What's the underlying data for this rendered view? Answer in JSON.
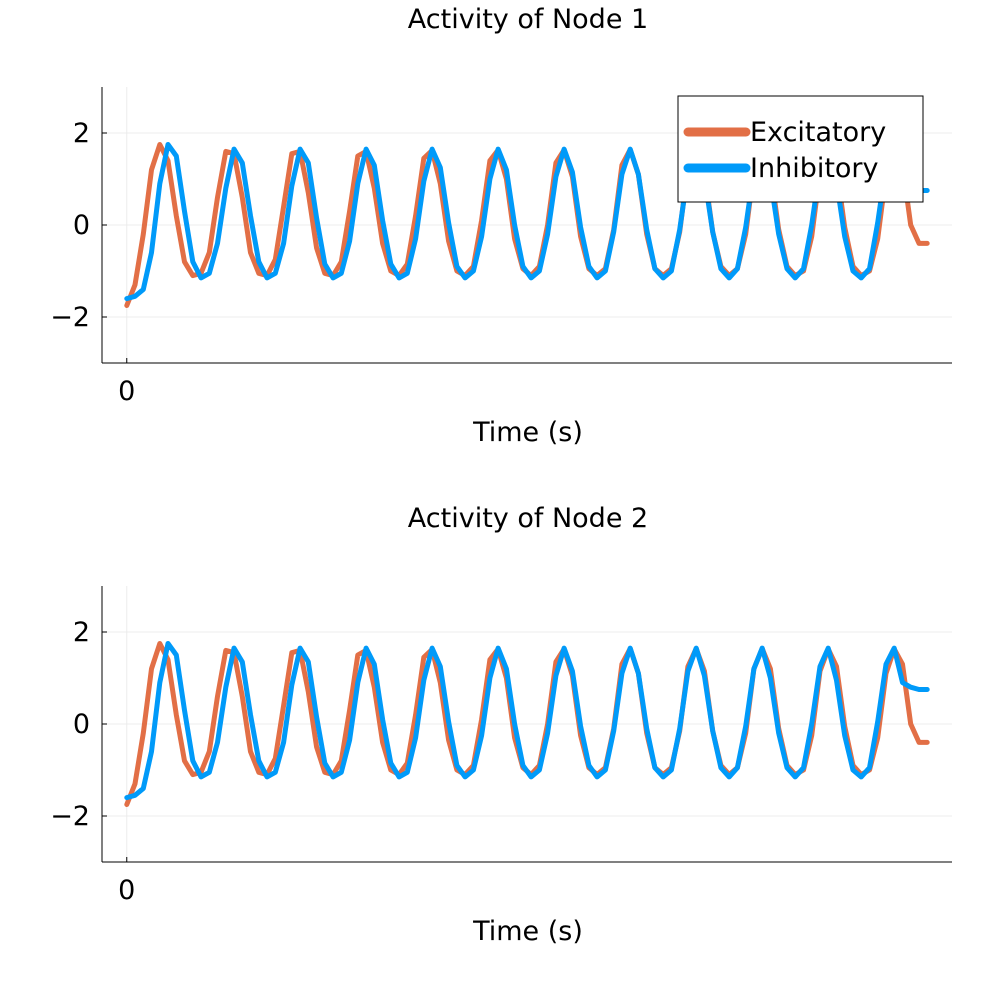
{
  "colors": {
    "excitatory": "#e26f46",
    "inhibitory": "#009af9",
    "grid": "#ececec",
    "axis": "#000000"
  },
  "chart_data": [
    {
      "type": "line",
      "title": "Activity of Node 1",
      "xlabel": "Time (s)",
      "ylabel": "",
      "xlim": [
        -0.3,
        10.0
      ],
      "ylim": [
        -3,
        3
      ],
      "xticks": [
        0
      ],
      "yticks": [
        -2,
        0,
        2
      ],
      "ytick_labels": [
        "−2",
        "0",
        "2"
      ],
      "grid": true,
      "legend": "top-right",
      "series": [
        {
          "name": "Excitatory",
          "color": "#e26f46",
          "x": [
            0,
            0.1,
            0.2,
            0.3,
            0.4,
            0.5,
            0.6,
            0.7,
            0.8,
            0.9,
            1.0,
            1.1,
            1.2,
            1.3,
            1.4,
            1.5,
            1.6,
            1.7,
            1.8,
            1.9,
            2.0,
            2.1,
            2.2,
            2.3,
            2.4,
            2.5,
            2.6,
            2.7,
            2.8,
            2.9,
            3.0,
            3.1,
            3.2,
            3.3,
            3.4,
            3.5,
            3.6,
            3.7,
            3.8,
            3.9,
            4.0,
            4.1,
            4.2,
            4.3,
            4.4,
            4.5,
            4.6,
            4.7,
            4.8,
            4.9,
            5.0,
            5.1,
            5.2,
            5.3,
            5.4,
            5.5,
            5.6,
            5.7,
            5.8,
            5.9,
            6.0,
            6.1,
            6.2,
            6.3,
            6.4,
            6.5,
            6.6,
            6.7,
            6.8,
            6.9,
            7.0,
            7.1,
            7.2,
            7.3,
            7.4,
            7.5,
            7.6,
            7.7,
            7.8,
            7.9,
            8.0,
            8.1,
            8.2,
            8.3,
            8.4,
            8.5,
            8.6,
            8.7,
            8.8,
            8.9,
            9.0,
            9.1,
            9.2,
            9.3,
            9.4,
            9.5,
            9.6,
            9.7
          ],
          "y": [
            -1.75,
            -1.3,
            -0.2,
            1.2,
            1.75,
            1.4,
            0.2,
            -0.8,
            -1.1,
            -1.05,
            -0.6,
            0.6,
            1.6,
            1.55,
            0.6,
            -0.6,
            -1.05,
            -1.1,
            -0.75,
            0.4,
            1.55,
            1.6,
            0.7,
            -0.5,
            -1.05,
            -1.1,
            -0.8,
            0.3,
            1.5,
            1.6,
            0.8,
            -0.4,
            -1.0,
            -1.1,
            -0.85,
            0.2,
            1.45,
            1.62,
            0.9,
            -0.35,
            -1.0,
            -1.1,
            -0.9,
            0.1,
            1.4,
            1.63,
            1.0,
            -0.3,
            -0.95,
            -1.1,
            -0.9,
            0.0,
            1.35,
            1.63,
            1.05,
            -0.25,
            -0.95,
            -1.1,
            -0.95,
            -0.1,
            1.3,
            1.64,
            1.1,
            -0.2,
            -0.95,
            -1.1,
            -0.95,
            -0.15,
            1.25,
            1.64,
            1.15,
            -0.15,
            -0.9,
            -1.1,
            -0.95,
            -0.2,
            1.2,
            1.64,
            1.2,
            -0.1,
            -0.9,
            -1.1,
            -1.0,
            -0.25,
            1.15,
            1.63,
            1.25,
            -0.05,
            -0.9,
            -1.1,
            -1.0,
            -0.3,
            1.1,
            1.63,
            1.3,
            0.0,
            -0.4,
            -0.4
          ]
        },
        {
          "name": "Inhibitory",
          "color": "#009af9",
          "x": [
            0,
            0.1,
            0.2,
            0.3,
            0.4,
            0.5,
            0.6,
            0.7,
            0.8,
            0.9,
            1.0,
            1.1,
            1.2,
            1.3,
            1.4,
            1.5,
            1.6,
            1.7,
            1.8,
            1.9,
            2.0,
            2.1,
            2.2,
            2.3,
            2.4,
            2.5,
            2.6,
            2.7,
            2.8,
            2.9,
            3.0,
            3.1,
            3.2,
            3.3,
            3.4,
            3.5,
            3.6,
            3.7,
            3.8,
            3.9,
            4.0,
            4.1,
            4.2,
            4.3,
            4.4,
            4.5,
            4.6,
            4.7,
            4.8,
            4.9,
            5.0,
            5.1,
            5.2,
            5.3,
            5.4,
            5.5,
            5.6,
            5.7,
            5.8,
            5.9,
            6.0,
            6.1,
            6.2,
            6.3,
            6.4,
            6.5,
            6.6,
            6.7,
            6.8,
            6.9,
            7.0,
            7.1,
            7.2,
            7.3,
            7.4,
            7.5,
            7.6,
            7.7,
            7.8,
            7.9,
            8.0,
            8.1,
            8.2,
            8.3,
            8.4,
            8.5,
            8.6,
            8.7,
            8.8,
            8.9,
            9.0,
            9.1,
            9.2,
            9.3,
            9.4,
            9.5,
            9.6,
            9.7
          ],
          "y": [
            -1.6,
            -1.55,
            -1.4,
            -0.6,
            0.9,
            1.75,
            1.5,
            0.3,
            -0.8,
            -1.15,
            -1.05,
            -0.4,
            0.8,
            1.65,
            1.35,
            0.2,
            -0.8,
            -1.15,
            -1.05,
            -0.4,
            0.85,
            1.65,
            1.35,
            0.15,
            -0.85,
            -1.15,
            -1.05,
            -0.35,
            0.9,
            1.65,
            1.3,
            0.1,
            -0.85,
            -1.15,
            -1.05,
            -0.3,
            0.95,
            1.65,
            1.25,
            0.05,
            -0.9,
            -1.15,
            -1.0,
            -0.25,
            1.0,
            1.65,
            1.2,
            0.0,
            -0.9,
            -1.15,
            -1.0,
            -0.2,
            1.05,
            1.65,
            1.15,
            -0.05,
            -0.9,
            -1.15,
            -1.0,
            -0.15,
            1.1,
            1.65,
            1.1,
            -0.1,
            -0.95,
            -1.15,
            -1.0,
            -0.1,
            1.15,
            1.65,
            1.05,
            -0.15,
            -0.95,
            -1.15,
            -0.95,
            -0.05,
            1.2,
            1.65,
            1.0,
            -0.2,
            -0.95,
            -1.15,
            -0.95,
            0.0,
            1.25,
            1.65,
            0.95,
            -0.25,
            -1.0,
            -1.15,
            -0.95,
            0.05,
            1.3,
            1.65,
            0.9,
            0.8,
            0.75,
            0.75
          ]
        }
      ]
    },
    {
      "type": "line",
      "title": "Activity of Node 2",
      "xlabel": "Time (s)",
      "ylabel": "",
      "xlim": [
        -0.3,
        10.0
      ],
      "ylim": [
        -3,
        3
      ],
      "xticks": [
        0
      ],
      "yticks": [
        -2,
        0,
        2
      ],
      "ytick_labels": [
        "−2",
        "0",
        "2"
      ],
      "grid": true,
      "legend": "none",
      "series": [
        {
          "name": "Excitatory",
          "color": "#e26f46",
          "x": [
            0,
            0.1,
            0.2,
            0.3,
            0.4,
            0.5,
            0.6,
            0.7,
            0.8,
            0.9,
            1.0,
            1.1,
            1.2,
            1.3,
            1.4,
            1.5,
            1.6,
            1.7,
            1.8,
            1.9,
            2.0,
            2.1,
            2.2,
            2.3,
            2.4,
            2.5,
            2.6,
            2.7,
            2.8,
            2.9,
            3.0,
            3.1,
            3.2,
            3.3,
            3.4,
            3.5,
            3.6,
            3.7,
            3.8,
            3.9,
            4.0,
            4.1,
            4.2,
            4.3,
            4.4,
            4.5,
            4.6,
            4.7,
            4.8,
            4.9,
            5.0,
            5.1,
            5.2,
            5.3,
            5.4,
            5.5,
            5.6,
            5.7,
            5.8,
            5.9,
            6.0,
            6.1,
            6.2,
            6.3,
            6.4,
            6.5,
            6.6,
            6.7,
            6.8,
            6.9,
            7.0,
            7.1,
            7.2,
            7.3,
            7.4,
            7.5,
            7.6,
            7.7,
            7.8,
            7.9,
            8.0,
            8.1,
            8.2,
            8.3,
            8.4,
            8.5,
            8.6,
            8.7,
            8.8,
            8.9,
            9.0,
            9.1,
            9.2,
            9.3,
            9.4,
            9.5,
            9.6,
            9.7
          ],
          "y": [
            -1.75,
            -1.3,
            -0.2,
            1.2,
            1.75,
            1.4,
            0.2,
            -0.8,
            -1.1,
            -1.05,
            -0.6,
            0.6,
            1.6,
            1.55,
            0.6,
            -0.6,
            -1.05,
            -1.1,
            -0.75,
            0.4,
            1.55,
            1.6,
            0.7,
            -0.5,
            -1.05,
            -1.1,
            -0.8,
            0.3,
            1.5,
            1.6,
            0.8,
            -0.4,
            -1.0,
            -1.1,
            -0.85,
            0.2,
            1.45,
            1.62,
            0.9,
            -0.35,
            -1.0,
            -1.1,
            -0.9,
            0.1,
            1.4,
            1.63,
            1.0,
            -0.3,
            -0.95,
            -1.1,
            -0.9,
            0.0,
            1.35,
            1.63,
            1.05,
            -0.25,
            -0.95,
            -1.1,
            -0.95,
            -0.1,
            1.3,
            1.64,
            1.1,
            -0.2,
            -0.95,
            -1.1,
            -0.95,
            -0.15,
            1.25,
            1.64,
            1.15,
            -0.15,
            -0.9,
            -1.1,
            -0.95,
            -0.2,
            1.2,
            1.64,
            1.2,
            -0.1,
            -0.9,
            -1.1,
            -1.0,
            -0.25,
            1.15,
            1.63,
            1.25,
            -0.05,
            -0.9,
            -1.1,
            -1.0,
            -0.3,
            1.1,
            1.63,
            1.3,
            0.0,
            -0.4,
            -0.4
          ]
        },
        {
          "name": "Inhibitory",
          "color": "#009af9",
          "x": [
            0,
            0.1,
            0.2,
            0.3,
            0.4,
            0.5,
            0.6,
            0.7,
            0.8,
            0.9,
            1.0,
            1.1,
            1.2,
            1.3,
            1.4,
            1.5,
            1.6,
            1.7,
            1.8,
            1.9,
            2.0,
            2.1,
            2.2,
            2.3,
            2.4,
            2.5,
            2.6,
            2.7,
            2.8,
            2.9,
            3.0,
            3.1,
            3.2,
            3.3,
            3.4,
            3.5,
            3.6,
            3.7,
            3.8,
            3.9,
            4.0,
            4.1,
            4.2,
            4.3,
            4.4,
            4.5,
            4.6,
            4.7,
            4.8,
            4.9,
            5.0,
            5.1,
            5.2,
            5.3,
            5.4,
            5.5,
            5.6,
            5.7,
            5.8,
            5.9,
            6.0,
            6.1,
            6.2,
            6.3,
            6.4,
            6.5,
            6.6,
            6.7,
            6.8,
            6.9,
            7.0,
            7.1,
            7.2,
            7.3,
            7.4,
            7.5,
            7.6,
            7.7,
            7.8,
            7.9,
            8.0,
            8.1,
            8.2,
            8.3,
            8.4,
            8.5,
            8.6,
            8.7,
            8.8,
            8.9,
            9.0,
            9.1,
            9.2,
            9.3,
            9.4,
            9.5,
            9.6,
            9.7
          ],
          "y": [
            -1.6,
            -1.55,
            -1.4,
            -0.6,
            0.9,
            1.75,
            1.5,
            0.3,
            -0.8,
            -1.15,
            -1.05,
            -0.4,
            0.8,
            1.65,
            1.35,
            0.2,
            -0.8,
            -1.15,
            -1.05,
            -0.4,
            0.85,
            1.65,
            1.35,
            0.15,
            -0.85,
            -1.15,
            -1.05,
            -0.35,
            0.9,
            1.65,
            1.3,
            0.1,
            -0.85,
            -1.15,
            -1.05,
            -0.3,
            0.95,
            1.65,
            1.25,
            0.05,
            -0.9,
            -1.15,
            -1.0,
            -0.25,
            1.0,
            1.65,
            1.2,
            0.0,
            -0.9,
            -1.15,
            -1.0,
            -0.2,
            1.05,
            1.65,
            1.15,
            -0.05,
            -0.9,
            -1.15,
            -1.0,
            -0.15,
            1.1,
            1.65,
            1.1,
            -0.1,
            -0.95,
            -1.15,
            -1.0,
            -0.1,
            1.15,
            1.65,
            1.05,
            -0.15,
            -0.95,
            -1.15,
            -0.95,
            -0.05,
            1.2,
            1.65,
            1.0,
            -0.2,
            -0.95,
            -1.15,
            -0.95,
            0.0,
            1.25,
            1.65,
            0.95,
            -0.25,
            -1.0,
            -1.15,
            -0.95,
            0.05,
            1.3,
            1.65,
            0.9,
            0.8,
            0.75,
            0.75
          ]
        }
      ]
    }
  ]
}
